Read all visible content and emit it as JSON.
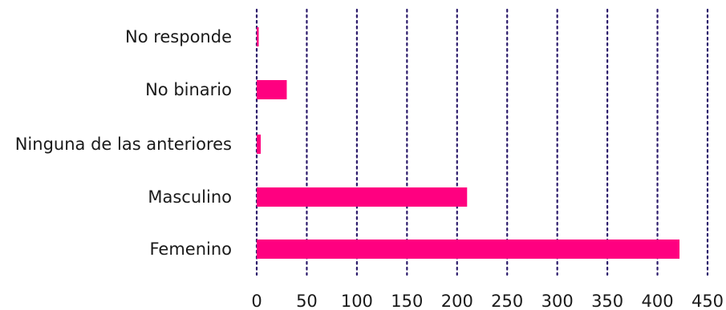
{
  "chart_data": {
    "type": "bar",
    "orientation": "horizontal",
    "title": "",
    "xlabel": "",
    "ylabel": "",
    "categories": [
      "No responde",
      "No binario",
      "Ninguna de las anteriores",
      "Masculino",
      "Femenino"
    ],
    "values": [
      2,
      30,
      4,
      210,
      422
    ],
    "xlim": [
      0,
      450
    ],
    "x_ticks": [
      0,
      50,
      100,
      150,
      200,
      250,
      300,
      350,
      400,
      450
    ],
    "x_tick_labels": [
      "0",
      "50",
      "100",
      "150",
      "200",
      "250",
      "300",
      "350",
      "400",
      "450"
    ],
    "grid": "vertical dotted",
    "legend": "none",
    "colors": {
      "bar": "#ff0080",
      "grid": "#2b1a6b",
      "text": "#1a1a1a"
    }
  }
}
